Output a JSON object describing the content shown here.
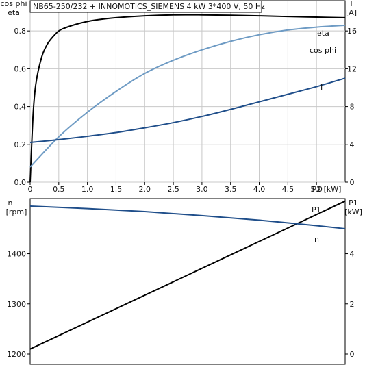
{
  "title": "NB65-250/232 + INNOMOTICS_SIEMENS   4 kW   3*400 V, 50 Hz",
  "colors": {
    "eta": "#000000",
    "cos_phi": "#6e9bc4",
    "current": "#1f4e8a",
    "speed": "#1f4e8a",
    "p1": "#000000",
    "axis": "#000000",
    "grid": "#c8c8c8"
  },
  "chart_data": [
    {
      "type": "line",
      "x_label": "P2 [kW]",
      "x_ticks": [
        "0",
        "0.5",
        "1.0",
        "1.5",
        "2.0",
        "2.5",
        "3.0",
        "3.5",
        "4.0",
        "4.5",
        "5.0"
      ],
      "xlim": [
        0,
        5.5
      ],
      "y_left_label_line1": "cos phi",
      "y_left_label_line2": "eta",
      "y_left_ticks": [
        "0.0",
        "0.2",
        "0.4",
        "0.6",
        "0.8"
      ],
      "y_left_lim": [
        0,
        0.96
      ],
      "y_right_label_line1": "I",
      "y_right_label_line2": "[A]",
      "y_right_ticks": [
        "0",
        "4",
        "8",
        "12",
        "16"
      ],
      "y_right_lim": [
        0,
        19.2
      ],
      "grid": true,
      "series": [
        {
          "name": "eta",
          "axis": "left",
          "x": [
            0,
            0.05,
            0.1,
            0.2,
            0.3,
            0.4,
            0.5,
            0.6,
            0.8,
            1.0,
            1.2,
            1.5,
            2.0,
            2.5,
            3.0,
            3.5,
            4.0,
            4.5,
            5.0,
            5.5
          ],
          "y": [
            0,
            0.35,
            0.52,
            0.66,
            0.73,
            0.77,
            0.8,
            0.815,
            0.835,
            0.85,
            0.86,
            0.87,
            0.88,
            0.885,
            0.885,
            0.883,
            0.88,
            0.876,
            0.873,
            0.87
          ]
        },
        {
          "name": "cos phi",
          "axis": "left",
          "x": [
            0,
            0.5,
            1.0,
            1.5,
            2.0,
            2.5,
            3.0,
            3.5,
            4.0,
            4.5,
            5.0,
            5.5
          ],
          "y": [
            0.08,
            0.24,
            0.37,
            0.48,
            0.575,
            0.645,
            0.7,
            0.745,
            0.78,
            0.805,
            0.82,
            0.83
          ]
        },
        {
          "name": "I",
          "axis": "right",
          "x": [
            0,
            0.5,
            1.0,
            1.5,
            2.0,
            2.5,
            3.0,
            3.5,
            4.0,
            4.5,
            5.0,
            5.5
          ],
          "y": [
            4.2,
            4.5,
            4.85,
            5.25,
            5.75,
            6.3,
            6.95,
            7.7,
            8.5,
            9.3,
            10.1,
            11.0
          ]
        }
      ]
    },
    {
      "type": "line",
      "xlim": [
        0,
        5.5
      ],
      "y_left_label_line1": "n",
      "y_left_label_line2": "[rpm]",
      "y_left_ticks": [
        "1200",
        "1300",
        "1400"
      ],
      "y_left_lim": [
        1200,
        1510
      ],
      "y_right_label_line1": "P1",
      "y_right_label_line2": "[kW]",
      "y_right_ticks": [
        "0",
        "2",
        "4"
      ],
      "y_right_lim": [
        0,
        6.2
      ],
      "grid": false,
      "series": [
        {
          "name": "P1",
          "axis": "right",
          "x": [
            0,
            5.5
          ],
          "y": [
            0.2,
            6.1
          ]
        },
        {
          "name": "n",
          "axis": "left",
          "x": [
            0,
            1.0,
            2.0,
            3.0,
            4.0,
            5.0,
            5.5
          ],
          "y": [
            1495,
            1490,
            1484,
            1476,
            1467,
            1456,
            1450
          ]
        }
      ]
    }
  ]
}
